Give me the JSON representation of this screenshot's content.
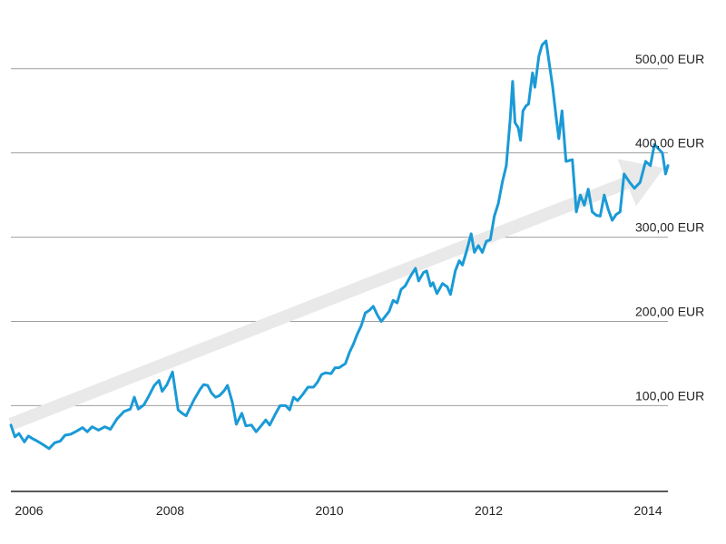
{
  "chart_data": {
    "type": "line",
    "xlim": [
      2006.0,
      2014.25
    ],
    "ylim": [
      -5,
      560
    ],
    "y_ticks": [
      {
        "value": 100,
        "label": "100,00 EUR"
      },
      {
        "value": 200,
        "label": "200,00 EUR"
      },
      {
        "value": 300,
        "label": "300,00 EUR"
      },
      {
        "value": 400,
        "label": "400,00 EUR"
      },
      {
        "value": 500,
        "label": "500,00 EUR"
      }
    ],
    "x_ticks": [
      {
        "value": 2006,
        "label": "2006"
      },
      {
        "value": 2008,
        "label": "2008"
      },
      {
        "value": 2010,
        "label": "2010"
      },
      {
        "value": 2012,
        "label": "2012"
      },
      {
        "value": 2014,
        "label": "2014"
      }
    ],
    "grid": true,
    "trend_arrow": {
      "color": "#e9e9e9",
      "start": [
        2006.0,
        78
      ],
      "end": [
        2014.2,
        382
      ]
    },
    "series": [
      {
        "color": "#1a9ad6",
        "points": [
          [
            2006.0,
            77
          ],
          [
            2006.05,
            63
          ],
          [
            2006.1,
            67
          ],
          [
            2006.17,
            57
          ],
          [
            2006.22,
            64
          ],
          [
            2006.27,
            61
          ],
          [
            2006.33,
            58
          ],
          [
            2006.4,
            54
          ],
          [
            2006.48,
            49
          ],
          [
            2006.55,
            56
          ],
          [
            2006.62,
            58
          ],
          [
            2006.68,
            65
          ],
          [
            2006.75,
            66
          ],
          [
            2006.83,
            70
          ],
          [
            2006.9,
            74
          ],
          [
            2006.96,
            69
          ],
          [
            2007.02,
            75
          ],
          [
            2007.1,
            71
          ],
          [
            2007.18,
            75
          ],
          [
            2007.25,
            72
          ],
          [
            2007.33,
            84
          ],
          [
            2007.42,
            93
          ],
          [
            2007.5,
            96
          ],
          [
            2007.55,
            110
          ],
          [
            2007.6,
            96
          ],
          [
            2007.67,
            101
          ],
          [
            2007.73,
            111
          ],
          [
            2007.8,
            124
          ],
          [
            2007.86,
            130
          ],
          [
            2007.9,
            117
          ],
          [
            2007.96,
            125
          ],
          [
            2008.03,
            140
          ],
          [
            2008.1,
            95
          ],
          [
            2008.15,
            91
          ],
          [
            2008.2,
            88
          ],
          [
            2008.3,
            107
          ],
          [
            2008.38,
            120
          ],
          [
            2008.42,
            125
          ],
          [
            2008.47,
            124
          ],
          [
            2008.52,
            115
          ],
          [
            2008.57,
            110
          ],
          [
            2008.62,
            112
          ],
          [
            2008.68,
            118
          ],
          [
            2008.72,
            124
          ],
          [
            2008.78,
            104
          ],
          [
            2008.83,
            78
          ],
          [
            2008.9,
            91
          ],
          [
            2008.95,
            76
          ],
          [
            2009.02,
            77
          ],
          [
            2009.08,
            69
          ],
          [
            2009.15,
            77
          ],
          [
            2009.2,
            83
          ],
          [
            2009.25,
            77
          ],
          [
            2009.32,
            90
          ],
          [
            2009.38,
            100
          ],
          [
            2009.45,
            100
          ],
          [
            2009.5,
            95
          ],
          [
            2009.55,
            110
          ],
          [
            2009.6,
            106
          ],
          [
            2009.67,
            114
          ],
          [
            2009.73,
            122
          ],
          [
            2009.8,
            122
          ],
          [
            2009.85,
            128
          ],
          [
            2009.9,
            137
          ],
          [
            2009.95,
            139
          ],
          [
            2010.02,
            138
          ],
          [
            2010.07,
            145
          ],
          [
            2010.12,
            145
          ],
          [
            2010.2,
            150
          ],
          [
            2010.25,
            163
          ],
          [
            2010.3,
            173
          ],
          [
            2010.35,
            185
          ],
          [
            2010.4,
            195
          ],
          [
            2010.45,
            210
          ],
          [
            2010.5,
            213
          ],
          [
            2010.55,
            218
          ],
          [
            2010.6,
            208
          ],
          [
            2010.65,
            200
          ],
          [
            2010.7,
            206
          ],
          [
            2010.75,
            212
          ],
          [
            2010.8,
            225
          ],
          [
            2010.85,
            222
          ],
          [
            2010.9,
            238
          ],
          [
            2010.95,
            242
          ],
          [
            2011.02,
            254
          ],
          [
            2011.08,
            263
          ],
          [
            2011.12,
            248
          ],
          [
            2011.18,
            258
          ],
          [
            2011.22,
            260
          ],
          [
            2011.27,
            242
          ],
          [
            2011.3,
            246
          ],
          [
            2011.35,
            233
          ],
          [
            2011.42,
            245
          ],
          [
            2011.48,
            241
          ],
          [
            2011.52,
            232
          ],
          [
            2011.58,
            260
          ],
          [
            2011.63,
            272
          ],
          [
            2011.67,
            267
          ],
          [
            2011.72,
            283
          ],
          [
            2011.78,
            304
          ],
          [
            2011.82,
            282
          ],
          [
            2011.87,
            290
          ],
          [
            2011.92,
            282
          ],
          [
            2011.97,
            295
          ],
          [
            2012.02,
            297
          ],
          [
            2012.07,
            325
          ],
          [
            2012.12,
            340
          ],
          [
            2012.17,
            365
          ],
          [
            2012.22,
            385
          ],
          [
            2012.27,
            440
          ],
          [
            2012.3,
            485
          ],
          [
            2012.33,
            436
          ],
          [
            2012.37,
            430
          ],
          [
            2012.4,
            415
          ],
          [
            2012.43,
            450
          ],
          [
            2012.47,
            456
          ],
          [
            2012.5,
            458
          ],
          [
            2012.55,
            495
          ],
          [
            2012.58,
            478
          ],
          [
            2012.63,
            515
          ],
          [
            2012.67,
            528
          ],
          [
            2012.72,
            533
          ],
          [
            2012.77,
            500
          ],
          [
            2012.8,
            480
          ],
          [
            2012.85,
            440
          ],
          [
            2012.88,
            417
          ],
          [
            2012.92,
            450
          ],
          [
            2012.97,
            390
          ],
          [
            2013.05,
            392
          ],
          [
            2013.1,
            330
          ],
          [
            2013.15,
            350
          ],
          [
            2013.2,
            338
          ],
          [
            2013.25,
            357
          ],
          [
            2013.3,
            330
          ],
          [
            2013.35,
            326
          ],
          [
            2013.4,
            325
          ],
          [
            2013.45,
            350
          ],
          [
            2013.5,
            333
          ],
          [
            2013.55,
            320
          ],
          [
            2013.6,
            327
          ],
          [
            2013.65,
            330
          ],
          [
            2013.7,
            375
          ],
          [
            2013.77,
            365
          ],
          [
            2013.83,
            358
          ],
          [
            2013.9,
            365
          ],
          [
            2013.97,
            390
          ],
          [
            2014.03,
            385
          ],
          [
            2014.08,
            410
          ],
          [
            2014.13,
            405
          ],
          [
            2014.18,
            400
          ],
          [
            2014.22,
            375
          ],
          [
            2014.25,
            385
          ]
        ]
      }
    ]
  }
}
